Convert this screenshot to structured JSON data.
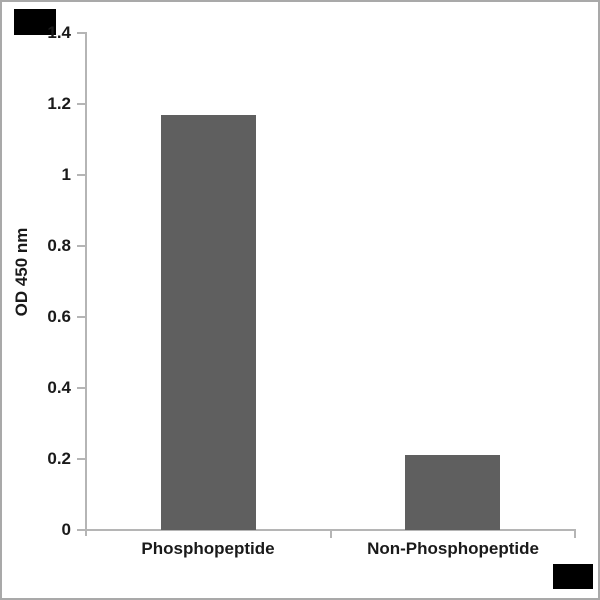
{
  "chart_data": {
    "type": "bar",
    "title": "",
    "xlabel": "",
    "ylabel": "OD 450 nm",
    "categories": [
      "Phosphopeptide",
      "Non-Phosphopeptide"
    ],
    "values": [
      1.17,
      0.21
    ],
    "ylim": [
      0,
      1.4
    ],
    "yticks": [
      0,
      0.2,
      0.4,
      0.6,
      0.8,
      1,
      1.2,
      1.4
    ],
    "ytick_labels": [
      "0",
      "0.2",
      "0.4",
      "0.6",
      "0.8",
      "1",
      "1.2",
      "1.4"
    ],
    "grid": false,
    "legend_position": "none",
    "bar_color": "#5f5f5f",
    "axis_color": "#b5b5b5",
    "text_color": "#1a1a1a",
    "background_color": "#ffffff",
    "frame_color": "#a9a9a9"
  },
  "decorations": {
    "corner_mark_color": "#000000"
  }
}
